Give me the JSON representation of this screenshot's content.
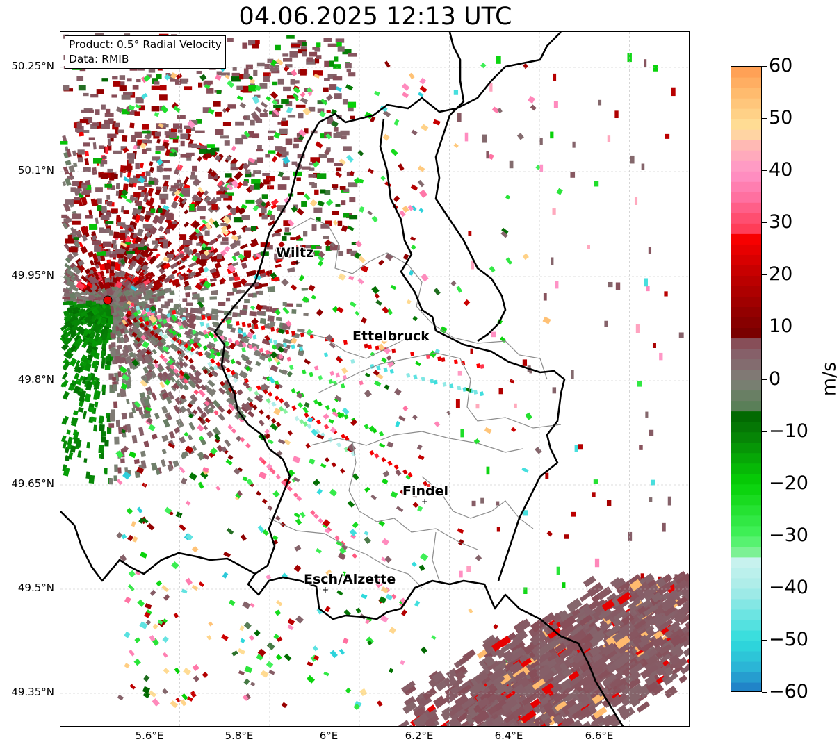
{
  "title": "04.06.2025 12:13 UTC",
  "info_box": {
    "product": "Product: 0.5° Radial Velocity",
    "data": "Data: RMIB"
  },
  "latitude_labels": [
    "50.25°N",
    "50.1°N",
    "49.95°N",
    "49.8°N",
    "49.65°N",
    "49.5°N",
    "49.35°N"
  ],
  "longitude_labels": [
    "5.6°E",
    "5.8°E",
    "6°E",
    "6.2°E",
    "6.4°E",
    "6.6°E"
  ],
  "cities": [
    {
      "name": "Wiltz"
    },
    {
      "name": "Ettelbruck"
    },
    {
      "name": "Findel"
    },
    {
      "name": "Esch/Alzette"
    }
  ],
  "colorbar": {
    "unit": "m/s",
    "tick_labels": [
      "60",
      "50",
      "40",
      "30",
      "20",
      "10",
      "0",
      "−10",
      "−20",
      "−30",
      "−40",
      "−50",
      "−60"
    ],
    "min": -60,
    "max": 60,
    "stops": [
      {
        "v": -60,
        "c": "#1f78c4"
      },
      {
        "v": -55,
        "c": "#2bb5d6"
      },
      {
        "v": -50,
        "c": "#2fdcdc"
      },
      {
        "v": -40,
        "c": "#a9ece8"
      },
      {
        "v": -35,
        "c": "#c7f2ee"
      },
      {
        "v": -34,
        "c": "#8ff0a6"
      },
      {
        "v": -30,
        "c": "#44f25e"
      },
      {
        "v": -20,
        "c": "#06d106"
      },
      {
        "v": -10,
        "c": "#067d06"
      },
      {
        "v": -6,
        "c": "#006400"
      },
      {
        "v": -5,
        "c": "#5a7f58"
      },
      {
        "v": 0,
        "c": "#7f7f77"
      },
      {
        "v": 5,
        "c": "#866069"
      },
      {
        "v": 8,
        "c": "#884550"
      },
      {
        "v": 9,
        "c": "#7a0000"
      },
      {
        "v": 20,
        "c": "#c00000"
      },
      {
        "v": 28,
        "c": "#ff0000"
      },
      {
        "v": 29,
        "c": "#ff3d58"
      },
      {
        "v": 35,
        "c": "#ff70a0"
      },
      {
        "v": 40,
        "c": "#ff94c8"
      },
      {
        "v": 45,
        "c": "#ffb9b4"
      },
      {
        "v": 48,
        "c": "#ffe29a"
      },
      {
        "v": 55,
        "c": "#ffbb6e"
      },
      {
        "v": 60,
        "c": "#ff9a50"
      }
    ]
  },
  "colors": {
    "border_national": "#000000",
    "border_district": "#8c8c8c",
    "radar_site": "#e60000",
    "grid": "#bbbbbb"
  }
}
